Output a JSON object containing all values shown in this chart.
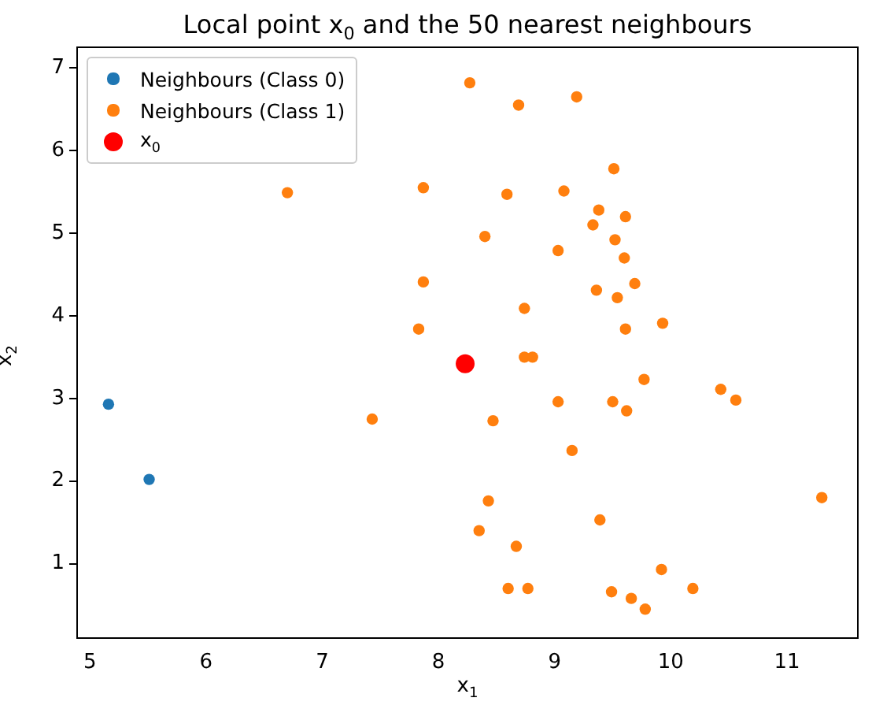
{
  "chart_data": {
    "type": "scatter",
    "title": "Local point x$_{0}$ and the 50 nearest neighbours",
    "xlabel": "x$_{1}$",
    "ylabel": "x$_{2}$",
    "xlim": [
      4.89,
      11.61
    ],
    "ylim": [
      0.1,
      7.25
    ],
    "xticks": [
      5,
      6,
      7,
      8,
      9,
      10,
      11
    ],
    "yticks": [
      1,
      2,
      3,
      4,
      5,
      6,
      7
    ],
    "grid": false,
    "legend": "top left",
    "marker": "circle",
    "series": [
      {
        "name": "Neighbours (Class 0)",
        "color": "#1f77b4",
        "x": [
          5.16,
          5.51
        ],
        "values": [
          2.93,
          2.02
        ]
      },
      {
        "name": "Neighbours (Class 1)",
        "color": "#ff7f0e",
        "x": [
          8.27,
          8.69,
          9.19,
          6.7,
          7.87,
          8.59,
          9.08,
          9.51,
          9.38,
          9.61,
          9.33,
          8.4,
          9.52,
          9.6,
          9.03,
          7.87,
          9.69,
          9.36,
          9.54,
          8.74,
          9.93,
          9.61,
          7.83,
          8.74,
          8.81,
          9.77,
          10.43,
          10.56,
          9.03,
          9.5,
          9.62,
          7.43,
          8.47,
          9.15,
          8.43,
          11.3,
          9.39,
          8.35,
          8.67,
          9.92,
          8.6,
          8.77,
          10.19,
          9.49,
          9.66,
          9.78
        ],
        "values": [
          6.82,
          6.55,
          6.65,
          5.49,
          5.55,
          5.47,
          5.51,
          5.78,
          5.28,
          5.2,
          5.1,
          4.96,
          4.92,
          4.7,
          4.79,
          4.41,
          4.39,
          4.31,
          4.22,
          4.09,
          3.91,
          3.84,
          3.84,
          3.5,
          3.5,
          3.23,
          3.11,
          2.98,
          2.96,
          2.96,
          2.85,
          2.75,
          2.73,
          2.37,
          1.76,
          1.8,
          1.53,
          1.4,
          1.21,
          0.93,
          0.7,
          0.7,
          0.7,
          0.66,
          0.58,
          0.45
        ]
      },
      {
        "name": "x$_{0}$",
        "color": "#ff0000",
        "x": [
          8.23
        ],
        "values": [
          3.42
        ]
      }
    ]
  }
}
